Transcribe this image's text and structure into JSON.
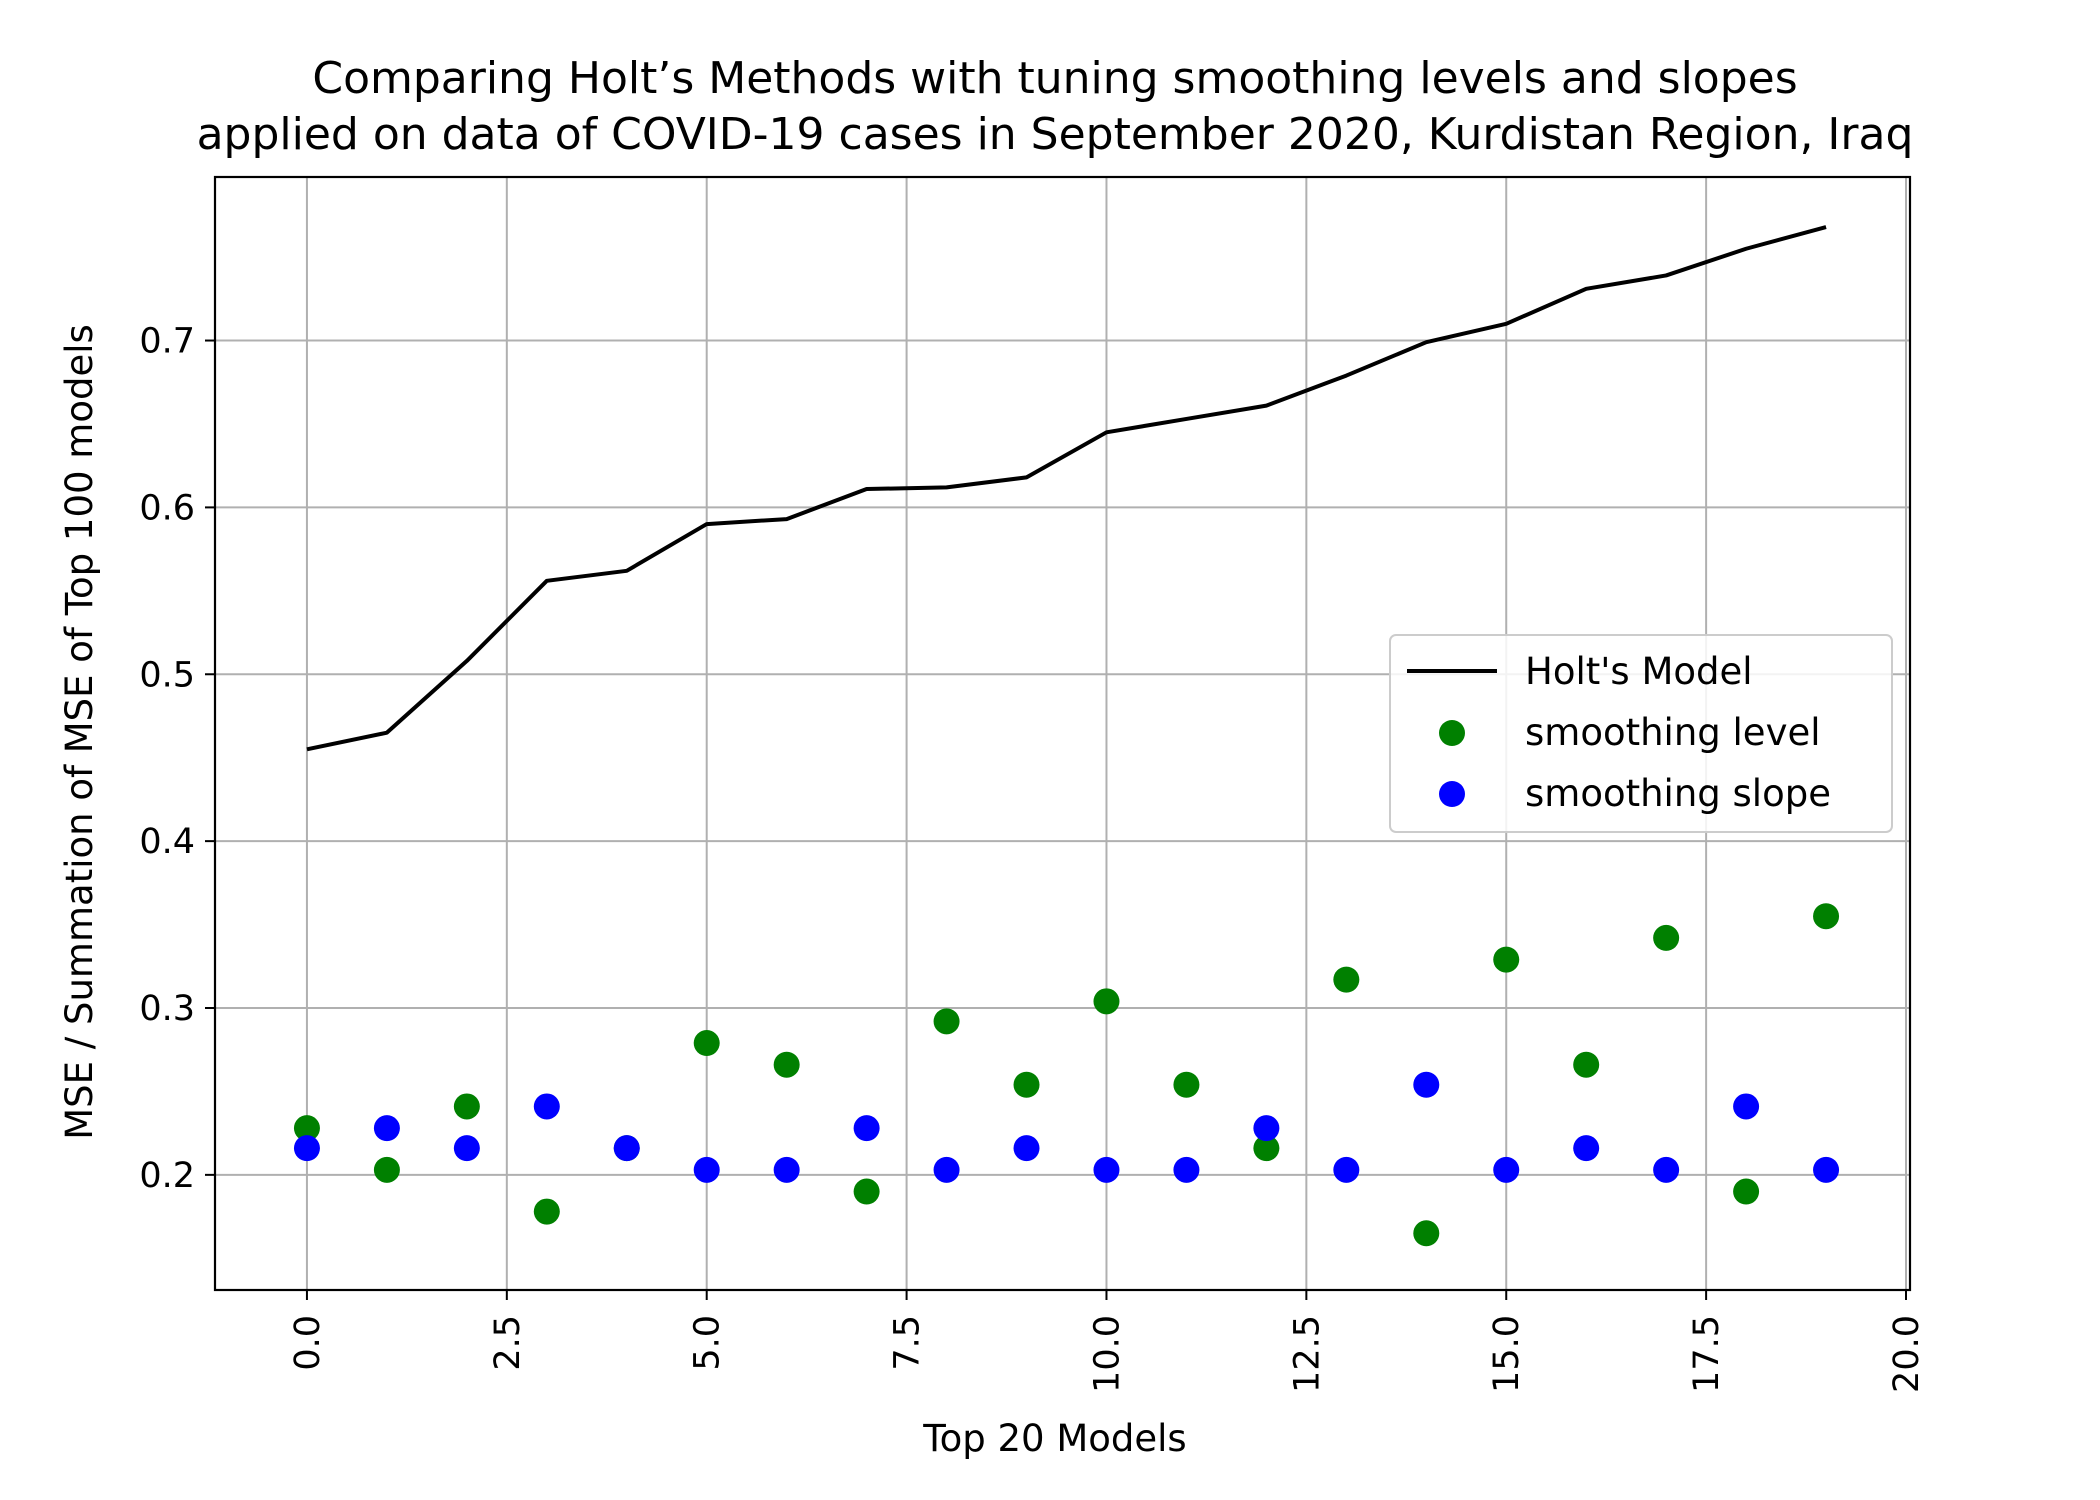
{
  "chart_data": {
    "type": "line",
    "title_line1": "Comparing Holt’s Methods with tuning smoothing levels and slopes",
    "title_line2": "applied on data of COVID-19 cases in September 2020, Kurdistan Region, Iraq",
    "xlabel": "Top 20 Models",
    "ylabel": "MSE / Summation of MSE of Top 100 models",
    "xlim": [
      -1.15,
      20.05
    ],
    "ylim": [
      0.131,
      0.798
    ],
    "xticks": [
      "0.0",
      "2.5",
      "5.0",
      "7.5",
      "10.0",
      "12.5",
      "15.0",
      "17.5",
      "20.0"
    ],
    "xtick_values": [
      0,
      2.5,
      5,
      7.5,
      10,
      12.5,
      15,
      17.5,
      20
    ],
    "yticks": [
      "0.2",
      "0.3",
      "0.4",
      "0.5",
      "0.6",
      "0.7"
    ],
    "ytick_values": [
      0.2,
      0.3,
      0.4,
      0.5,
      0.6,
      0.7
    ],
    "grid": true,
    "legend_position": "center-right",
    "x": [
      0,
      1,
      2,
      3,
      4,
      5,
      6,
      7,
      8,
      9,
      10,
      11,
      12,
      13,
      14,
      15,
      16,
      17,
      18,
      19
    ],
    "series": [
      {
        "name": "Holt's Model",
        "kind": "line",
        "color": "#000000",
        "values": [
          0.455,
          0.465,
          0.508,
          0.556,
          0.562,
          0.59,
          0.593,
          0.611,
          0.612,
          0.618,
          0.645,
          0.653,
          0.661,
          0.679,
          0.699,
          0.71,
          0.731,
          0.739,
          0.755,
          0.768
        ]
      },
      {
        "name": "smoothing level",
        "kind": "scatter",
        "color": "#008000",
        "values": [
          0.228,
          0.203,
          0.241,
          0.178,
          0.216,
          0.279,
          0.266,
          0.19,
          0.292,
          0.254,
          0.304,
          0.254,
          0.216,
          0.317,
          0.165,
          0.329,
          0.266,
          0.342,
          0.19,
          0.355
        ]
      },
      {
        "name": "smoothing slope",
        "kind": "scatter",
        "color": "#0000ff",
        "values": [
          0.216,
          0.228,
          0.216,
          0.241,
          0.216,
          0.203,
          0.203,
          0.228,
          0.203,
          0.216,
          0.203,
          0.203,
          0.228,
          0.203,
          0.254,
          0.203,
          0.216,
          0.203,
          0.241,
          0.203
        ]
      }
    ]
  }
}
